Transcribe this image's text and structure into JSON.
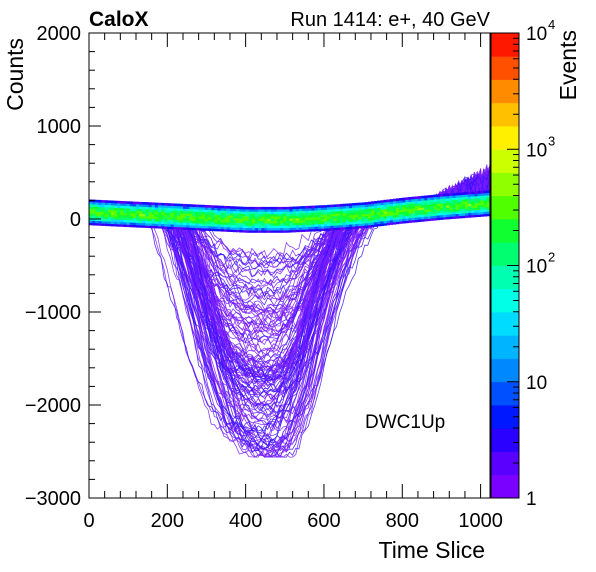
{
  "chart_data": {
    "type": "heatmap",
    "title_left": "CaloX",
    "title_right": "Run 1414: e+, 40 GeV",
    "xlabel": "Time Slice",
    "ylabel": "Counts",
    "zlabel": "Events",
    "annotation": "DWC1Up",
    "xlim": [
      0,
      1024
    ],
    "ylim": [
      -3000,
      2000
    ],
    "zlim": [
      1,
      10000
    ],
    "zscale": "log",
    "x_ticks": [
      {
        "value": 0,
        "label": "0"
      },
      {
        "value": 200,
        "label": "200"
      },
      {
        "value": 400,
        "label": "400"
      },
      {
        "value": 600,
        "label": "600"
      },
      {
        "value": 800,
        "label": "800"
      },
      {
        "value": 1000,
        "label": "1000"
      }
    ],
    "y_ticks": [
      {
        "value": 2000,
        "label": "2000"
      },
      {
        "value": 1000,
        "label": "1000"
      },
      {
        "value": 0,
        "label": "0"
      },
      {
        "value": -1000,
        "label": "−1000"
      },
      {
        "value": -2000,
        "label": "−2000"
      },
      {
        "value": -3000,
        "label": "−3000"
      }
    ],
    "z_ticks": [
      {
        "value": 1,
        "base": "1",
        "exp": ""
      },
      {
        "value": 10,
        "base": "10",
        "exp": ""
      },
      {
        "value": 100,
        "base": "10",
        "exp": "2"
      },
      {
        "value": 1000,
        "base": "10",
        "exp": "3"
      },
      {
        "value": 10000,
        "base": "10",
        "exp": "4"
      }
    ],
    "baseline_band": {
      "x": [
        0,
        100,
        200,
        300,
        400,
        500,
        600,
        700,
        800,
        900,
        1024
      ],
      "y_center": [
        60,
        40,
        20,
        0,
        -20,
        -20,
        0,
        30,
        80,
        120,
        160
      ],
      "peak_events": 300
    },
    "pulse_envelope": {
      "x": [
        200,
        250,
        300,
        350,
        400,
        450,
        500,
        550,
        600,
        650,
        700
      ],
      "y_min": [
        -100,
        -1400,
        -2200,
        -2550,
        -2550,
        -2550,
        -2550,
        -2200,
        -1400,
        -700,
        -100
      ]
    },
    "colors": {
      "palette": [
        "#7a00ff",
        "#5a00ff",
        "#2a00ff",
        "#0018ff",
        "#0050ff",
        "#0088ff",
        "#00b4ff",
        "#00dcff",
        "#00ffe6",
        "#00ffb0",
        "#00ff70",
        "#10ff30",
        "#50ff00",
        "#90ff00",
        "#ccff00",
        "#fff000",
        "#ffc000",
        "#ff8c00",
        "#ff5000",
        "#ff1800"
      ],
      "axis": "#000000"
    }
  }
}
